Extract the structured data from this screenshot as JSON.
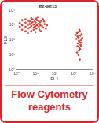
{
  "chart_data": {
    "type": "scatter",
    "title": "E2-9E15",
    "x_label": "FL1",
    "y_label": "FL3",
    "log": true,
    "grid": false,
    "color": "#e8392f",
    "xlim": [
      1,
      10000
    ],
    "xticks": [
      {
        "value": 1,
        "label": "10⁰"
      },
      {
        "value": 10,
        "label": "10¹"
      },
      {
        "value": 100,
        "label": "10²"
      },
      {
        "value": 1000,
        "label": "10³"
      },
      {
        "value": 10000,
        "label": "10⁴"
      }
    ],
    "ylim": [
      1,
      10000
    ],
    "yticks": [
      {
        "value": 1,
        "label": "10⁰"
      },
      {
        "value": 10,
        "label": "10¹"
      },
      {
        "value": 100,
        "label": "10²"
      },
      {
        "value": 1000,
        "label": "10³"
      },
      {
        "value": 10000,
        "label": "10⁴"
      }
    ],
    "x": [
      2,
      3,
      4,
      5,
      6,
      8,
      10,
      12,
      15,
      3,
      2,
      4,
      7,
      9,
      11,
      14,
      18,
      20,
      25,
      30,
      6,
      8,
      5,
      3,
      12,
      16,
      22,
      10,
      7,
      4,
      2,
      6,
      13,
      9,
      5,
      17,
      11,
      8,
      3,
      40,
      28,
      35,
      1.5,
      1.5,
      24,
      19,
      15,
      6,
      10,
      4,
      1500,
      1800,
      2000,
      1600,
      2200,
      2500,
      1700,
      1900,
      2100,
      1400,
      2300,
      2600,
      1800,
      2000,
      1600,
      2400,
      1500,
      2800,
      1700,
      2000,
      2200,
      1900,
      2100,
      1300,
      2500
    ],
    "values": [
      500,
      800,
      600,
      1200,
      900,
      700,
      1500,
      1000,
      800,
      1500,
      1000,
      2000,
      2500,
      1800,
      600,
      1300,
      1000,
      2000,
      700,
      1200,
      400,
      1100,
      700,
      400,
      2200,
      500,
      900,
      350,
      1600,
      1000,
      2200,
      3000,
      3500,
      800,
      1800,
      1600,
      2800,
      500,
      2500,
      1000,
      1800,
      600,
      800,
      1400,
      2600,
      400,
      1900,
      1300,
      900,
      300,
      300,
      150,
      80,
      40,
      200,
      100,
      60,
      20,
      400,
      120,
      50,
      250,
      10,
      30,
      180,
      70,
      15,
      140,
      350,
      500,
      25,
      90,
      5,
      220,
      40
    ]
  },
  "caption": "Flow Cytometry reagents"
}
